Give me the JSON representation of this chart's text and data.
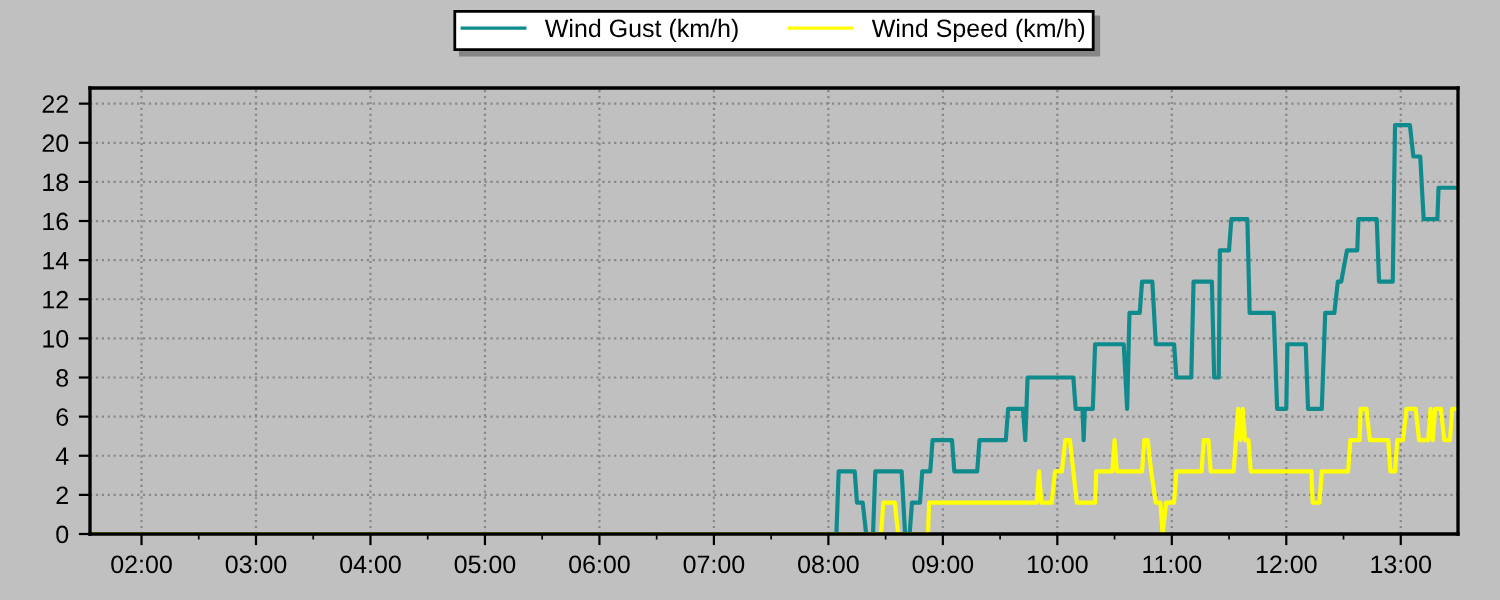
{
  "chart_data": {
    "type": "line",
    "xlim": [
      1.55,
      13.5
    ],
    "ylim": [
      0,
      22.8
    ],
    "xticks": [
      {
        "value": 2,
        "label": "02:00"
      },
      {
        "value": 2.5,
        "label": null
      },
      {
        "value": 3,
        "label": "03:00"
      },
      {
        "value": 3.5,
        "label": null
      },
      {
        "value": 4,
        "label": "04:00"
      },
      {
        "value": 4.5,
        "label": null
      },
      {
        "value": 5,
        "label": "05:00"
      },
      {
        "value": 5.5,
        "label": null
      },
      {
        "value": 6,
        "label": "06:00"
      },
      {
        "value": 6.5,
        "label": null
      },
      {
        "value": 7,
        "label": "07:00"
      },
      {
        "value": 7.5,
        "label": null
      },
      {
        "value": 8,
        "label": "08:00"
      },
      {
        "value": 8.5,
        "label": null
      },
      {
        "value": 9,
        "label": "09:00"
      },
      {
        "value": 9.5,
        "label": null
      },
      {
        "value": 10,
        "label": "10:00"
      },
      {
        "value": 10.5,
        "label": null
      },
      {
        "value": 11,
        "label": "11:00"
      },
      {
        "value": 11.5,
        "label": null
      },
      {
        "value": 12,
        "label": "12:00"
      },
      {
        "value": 12.5,
        "label": null
      },
      {
        "value": 13,
        "label": "13:00"
      }
    ],
    "yticks": [
      0,
      2,
      4,
      6,
      8,
      10,
      12,
      14,
      16,
      18,
      20,
      22
    ],
    "grid": true,
    "legend": "top",
    "marker": "none",
    "line_style": "solid",
    "series": [
      {
        "name": "Wind Gust (km/h)",
        "color": "#0f8b8d",
        "x": [
          8.0,
          8.07,
          8.09,
          8.23,
          8.25,
          8.3,
          8.33,
          8.39,
          8.41,
          8.64,
          8.67,
          8.71,
          8.73,
          8.8,
          8.82,
          8.89,
          8.91,
          9.08,
          9.1,
          9.3,
          9.32,
          9.55,
          9.57,
          9.7,
          9.72,
          9.74,
          10.14,
          10.16,
          10.22,
          10.23,
          10.24,
          10.31,
          10.33,
          10.58,
          10.61,
          10.63,
          10.72,
          10.74,
          10.83,
          10.86,
          11.02,
          11.04,
          11.17,
          11.19,
          11.35,
          11.37,
          11.41,
          11.42,
          11.5,
          11.52,
          11.66,
          11.68,
          11.89,
          11.92,
          12.0,
          12.01,
          12.17,
          12.19,
          12.31,
          12.34,
          12.42,
          12.45,
          12.48,
          12.53,
          12.62,
          12.63,
          12.79,
          12.81,
          12.93,
          12.95,
          13.08,
          13.11,
          13.17,
          13.2,
          13.32,
          13.33,
          13.49
        ],
        "values": [
          0,
          0,
          3.2,
          3.2,
          1.6,
          1.6,
          0,
          0,
          3.2,
          3.2,
          0,
          0,
          1.6,
          1.6,
          3.2,
          3.2,
          4.8,
          4.8,
          3.2,
          3.2,
          4.8,
          4.8,
          6.4,
          6.4,
          4.8,
          8.0,
          8.0,
          6.4,
          6.4,
          4.8,
          6.4,
          6.4,
          9.7,
          9.7,
          6.4,
          11.3,
          11.3,
          12.9,
          12.9,
          9.7,
          9.7,
          8.0,
          8.0,
          12.9,
          12.9,
          8.0,
          8.0,
          14.5,
          14.5,
          16.1,
          16.1,
          11.3,
          11.3,
          6.4,
          6.4,
          9.7,
          9.7,
          6.4,
          6.4,
          11.3,
          11.3,
          12.9,
          12.9,
          14.5,
          14.5,
          16.1,
          16.1,
          12.9,
          12.9,
          20.9,
          20.9,
          19.3,
          19.3,
          16.1,
          16.1,
          17.7,
          17.7
        ]
      },
      {
        "name": "Wind Speed (km/h)",
        "color": "#ffff00",
        "x": [
          1.55,
          8.46,
          8.48,
          8.58,
          8.61,
          8.87,
          8.88,
          9.82,
          9.84,
          9.86,
          9.95,
          9.98,
          10.04,
          10.07,
          10.11,
          10.14,
          10.17,
          10.33,
          10.34,
          10.48,
          10.5,
          10.52,
          10.74,
          10.76,
          10.79,
          10.82,
          10.86,
          10.9,
          10.92,
          10.95,
          11.02,
          11.04,
          11.26,
          11.28,
          11.32,
          11.34,
          11.54,
          11.56,
          11.58,
          11.6,
          11.62,
          11.64,
          11.67,
          11.69,
          12.22,
          12.23,
          12.29,
          12.31,
          12.54,
          12.56,
          12.64,
          12.65,
          12.7,
          12.73,
          12.89,
          12.91,
          12.95,
          12.97,
          13.02,
          13.05,
          13.13,
          13.16,
          13.24,
          13.26,
          13.28,
          13.3,
          13.35,
          13.38,
          13.43,
          13.45,
          13.49
        ],
        "values": [
          0,
          0,
          1.6,
          1.6,
          0,
          0,
          1.6,
          1.6,
          3.2,
          1.6,
          1.6,
          3.2,
          3.2,
          4.8,
          4.8,
          3.2,
          1.6,
          1.6,
          3.2,
          3.2,
          4.8,
          3.2,
          3.2,
          4.8,
          4.8,
          3.2,
          1.6,
          1.6,
          0,
          1.6,
          1.6,
          3.2,
          3.2,
          4.8,
          4.8,
          3.2,
          3.2,
          4.8,
          6.4,
          4.8,
          6.4,
          4.8,
          4.8,
          3.2,
          3.2,
          1.6,
          1.6,
          3.2,
          3.2,
          4.8,
          4.8,
          6.4,
          6.4,
          4.8,
          4.8,
          3.2,
          3.2,
          4.8,
          4.8,
          6.4,
          6.4,
          4.8,
          4.8,
          6.4,
          4.8,
          6.4,
          6.4,
          4.8,
          4.8,
          6.4,
          6.4
        ]
      }
    ]
  }
}
